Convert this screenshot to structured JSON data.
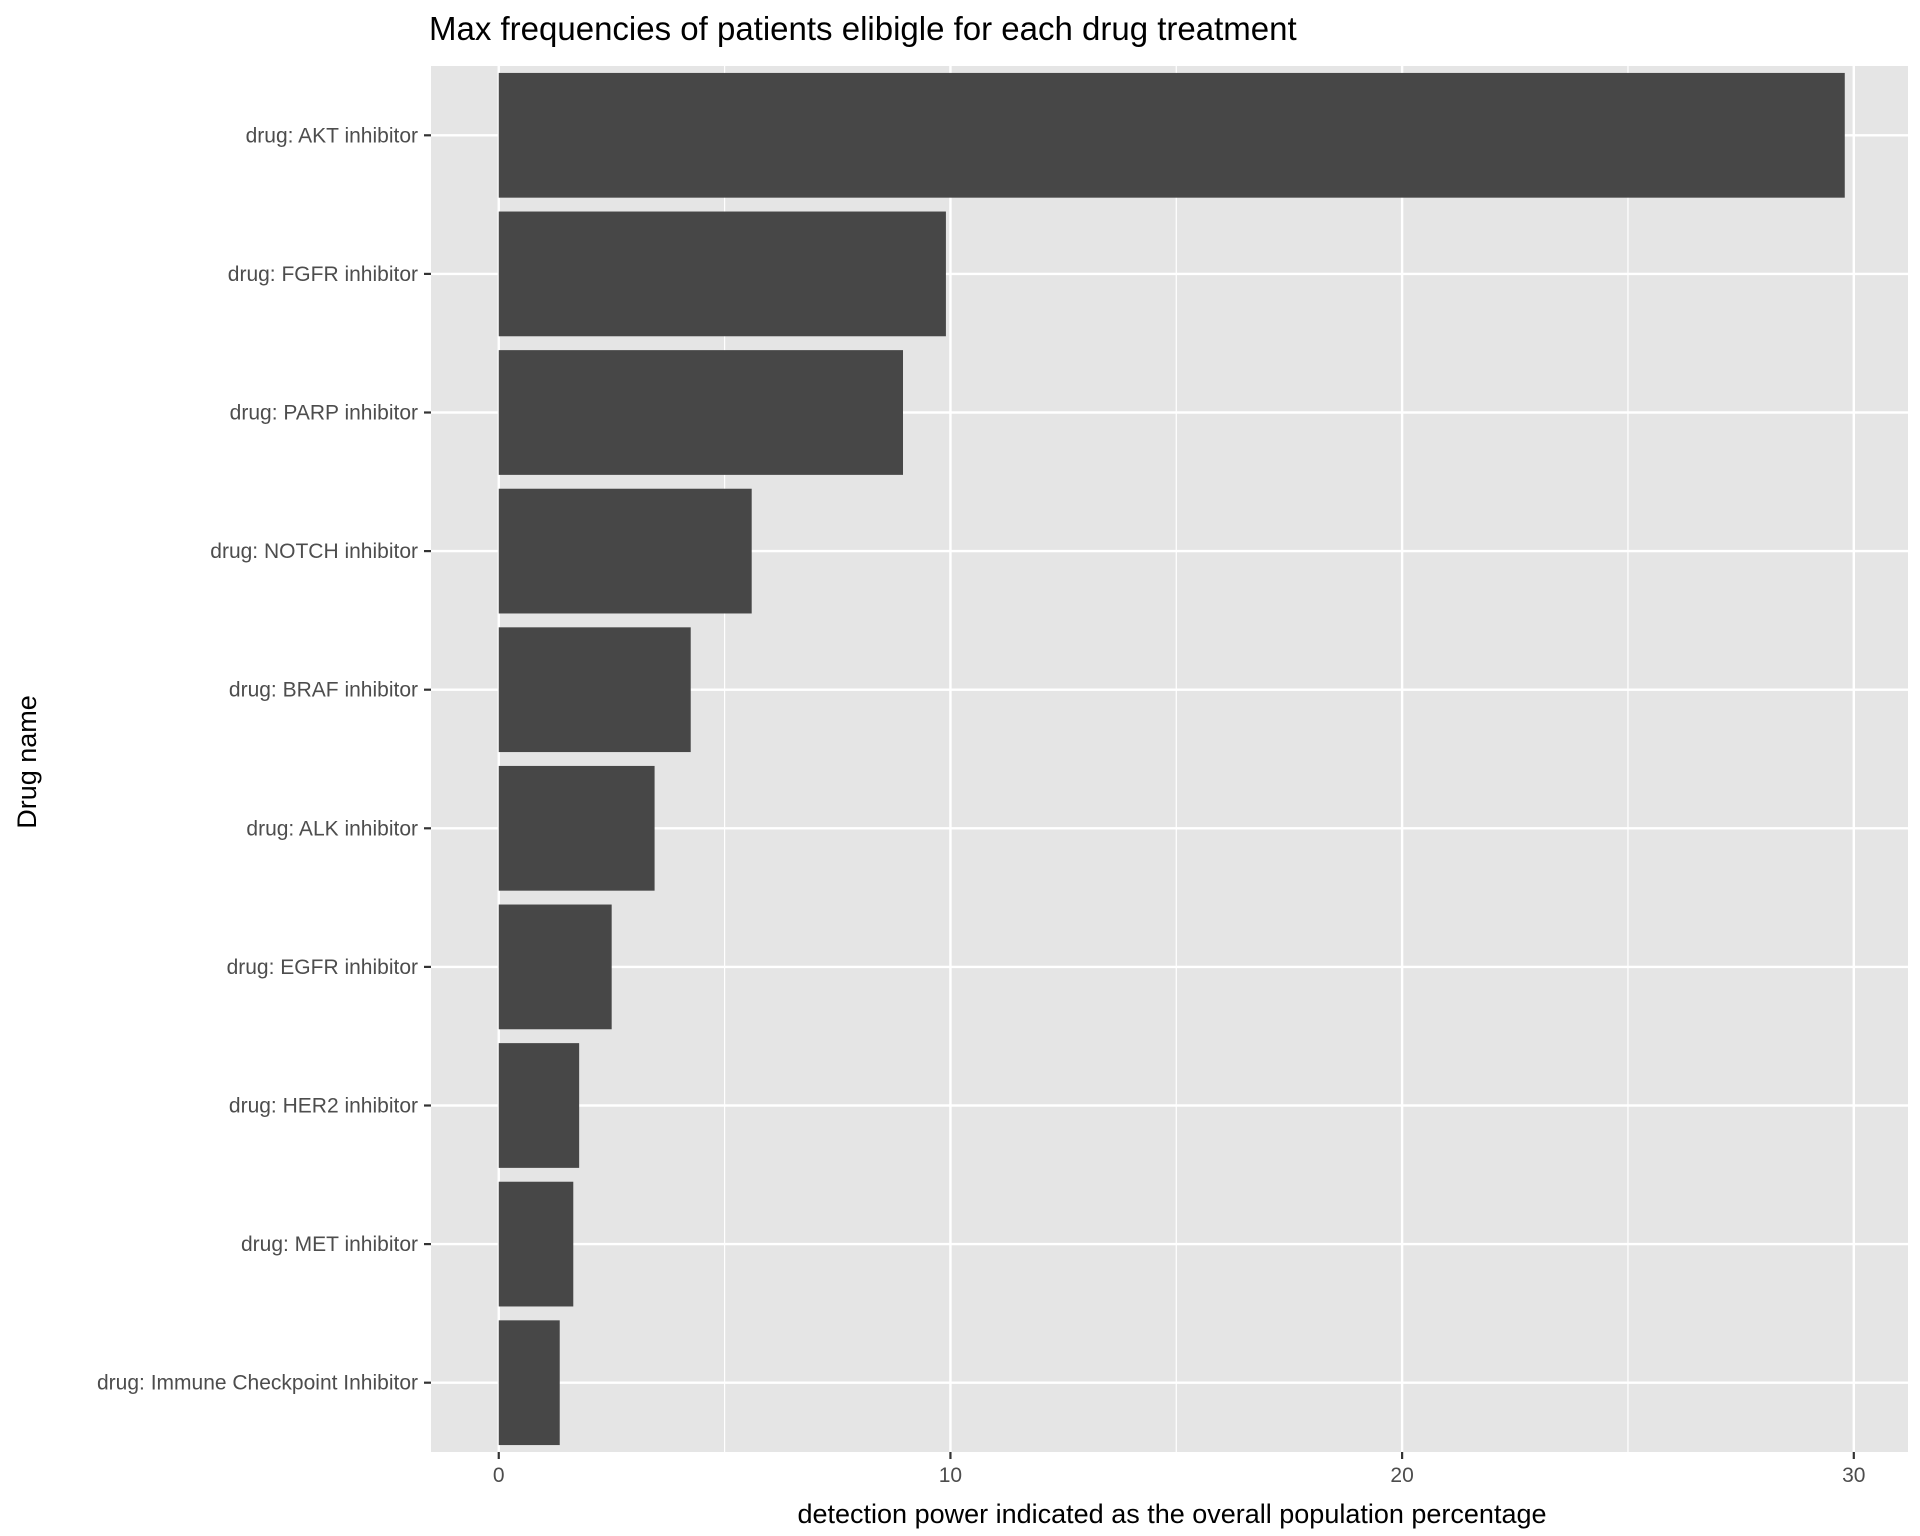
{
  "chart_data": {
    "type": "bar",
    "orientation": "horizontal",
    "title": "Max frequencies of patients elibigle for each drug treatment",
    "xlabel": "detection power indicated as the overall population percentage",
    "ylabel": "Drug name",
    "categories": [
      "drug: AKT inhibitor",
      "drug: FGFR inhibitor",
      "drug: PARP inhibitor",
      "drug: NOTCH inhibitor",
      "drug: BRAF inhibitor",
      "drug: ALK inhibitor",
      "drug: EGFR inhibitor",
      "drug: HER2 inhibitor",
      "drug: MET inhibitor",
      "drug: Immune Checkpoint Inhibitor"
    ],
    "values": [
      29.8,
      9.9,
      8.95,
      5.6,
      4.25,
      3.45,
      2.5,
      1.78,
      1.65,
      1.35
    ],
    "xlim": [
      -1.5,
      31.2
    ],
    "xticks": [
      0,
      10,
      20,
      30
    ],
    "xtick_labels": [
      "0",
      "10",
      "20",
      "30"
    ],
    "minor_xticks": [
      5,
      15,
      25
    ],
    "grid": true,
    "bar_color": "#474747",
    "panel_color": "#e5e5e5",
    "grid_color": "#ffffff"
  }
}
